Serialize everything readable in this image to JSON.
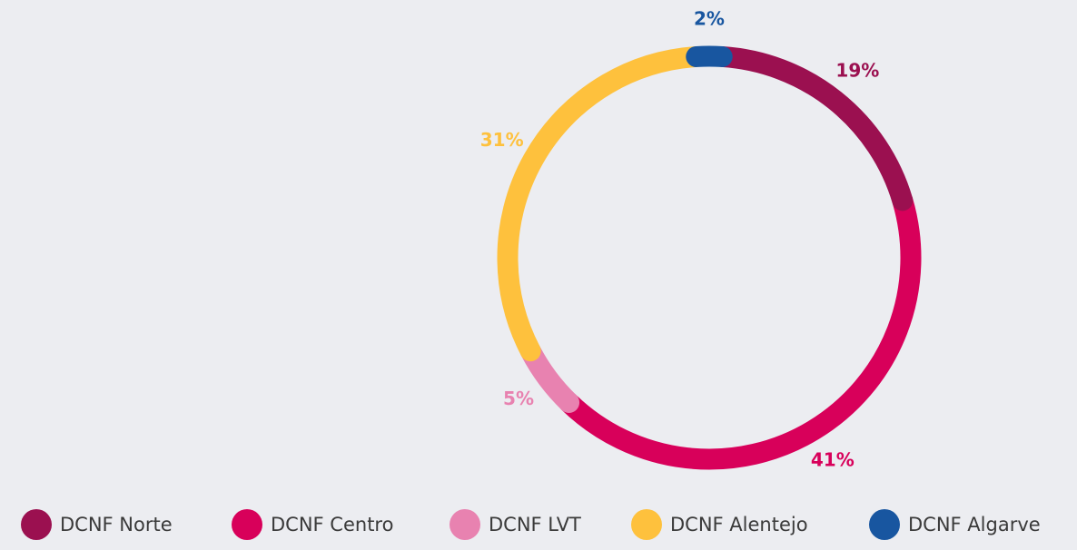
{
  "chart_data": {
    "type": "donut",
    "categories": [
      "DCNF Norte",
      "DCNF Centro",
      "DCNF LVT",
      "DCNF Alentejo",
      "DCNF Algarve"
    ],
    "values": [
      19,
      41,
      5,
      31,
      2
    ],
    "value_labels": [
      "19%",
      "41%",
      "5%",
      "31%",
      "2%"
    ],
    "colors": [
      "#9b1050",
      "#d8005a",
      "#e882b0",
      "#fec13d",
      "#1856a0"
    ],
    "legend": "bottom"
  }
}
